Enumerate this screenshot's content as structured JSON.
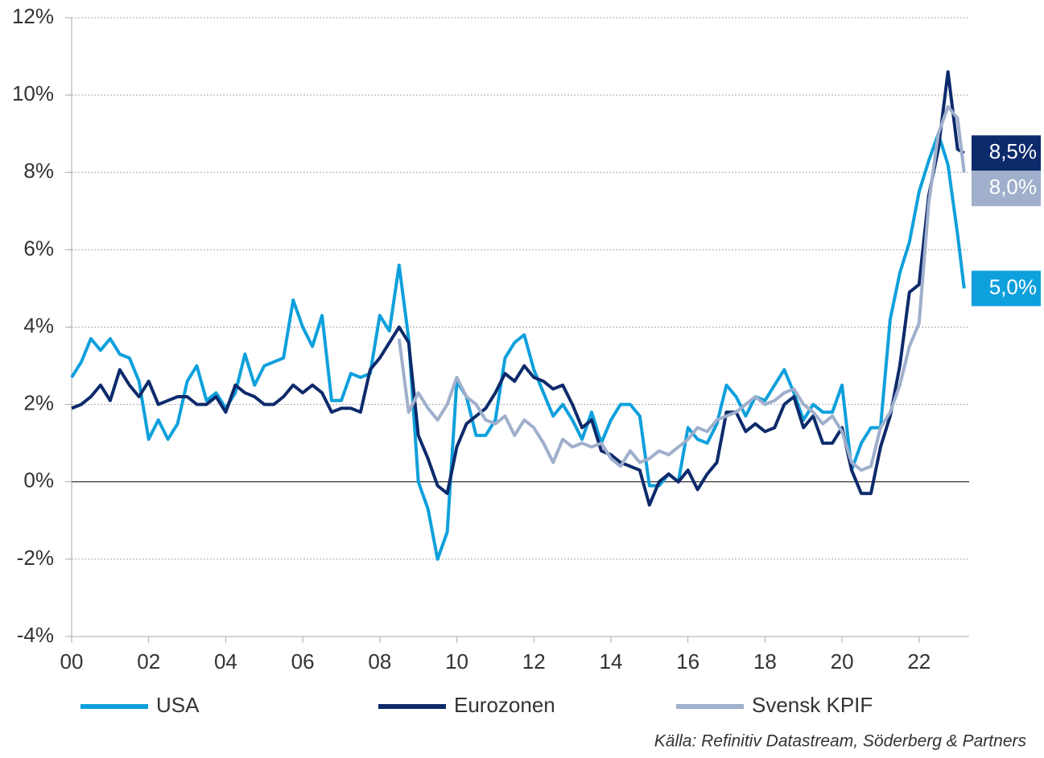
{
  "chart_data": {
    "type": "line",
    "x": [
      2000,
      2000.25,
      2000.5,
      2000.75,
      2001,
      2001.25,
      2001.5,
      2001.75,
      2002,
      2002.25,
      2002.5,
      2002.75,
      2003,
      2003.25,
      2003.5,
      2003.75,
      2004,
      2004.25,
      2004.5,
      2004.75,
      2005,
      2005.25,
      2005.5,
      2005.75,
      2006,
      2006.25,
      2006.5,
      2006.75,
      2007,
      2007.25,
      2007.5,
      2007.75,
      2008,
      2008.25,
      2008.5,
      2008.75,
      2009,
      2009.25,
      2009.5,
      2009.75,
      2010,
      2010.25,
      2010.5,
      2010.75,
      2011,
      2011.25,
      2011.5,
      2011.75,
      2012,
      2012.25,
      2012.5,
      2012.75,
      2013,
      2013.25,
      2013.5,
      2013.75,
      2014,
      2014.25,
      2014.5,
      2014.75,
      2015,
      2015.25,
      2015.5,
      2015.75,
      2016,
      2016.25,
      2016.5,
      2016.75,
      2017,
      2017.25,
      2017.5,
      2017.75,
      2018,
      2018.25,
      2018.5,
      2018.75,
      2019,
      2019.25,
      2019.5,
      2019.75,
      2020,
      2020.25,
      2020.5,
      2020.75,
      2021,
      2021.25,
      2021.5,
      2021.75,
      2022,
      2022.25,
      2022.5,
      2022.75,
      2023,
      2023.17
    ],
    "series": [
      {
        "name": "USA",
        "color": "#0ea0dc",
        "end_label": "5,0%",
        "values": [
          2.7,
          3.1,
          3.7,
          3.4,
          3.7,
          3.3,
          3.2,
          2.6,
          1.1,
          1.6,
          1.1,
          1.5,
          2.6,
          3.0,
          2.1,
          2.3,
          1.9,
          2.3,
          3.3,
          2.5,
          3.0,
          3.1,
          3.2,
          4.7,
          4.0,
          3.5,
          4.3,
          2.1,
          2.1,
          2.8,
          2.7,
          2.8,
          4.3,
          3.9,
          5.6,
          3.7,
          0.0,
          -0.7,
          -2.0,
          -1.3,
          2.6,
          2.2,
          1.2,
          1.2,
          1.6,
          3.2,
          3.6,
          3.8,
          2.9,
          2.3,
          1.7,
          2.0,
          1.6,
          1.1,
          1.8,
          1.0,
          1.6,
          2.0,
          2.0,
          1.7,
          -0.1,
          -0.1,
          0.2,
          0.0,
          1.4,
          1.1,
          1.0,
          1.5,
          2.5,
          2.2,
          1.7,
          2.2,
          2.1,
          2.5,
          2.9,
          2.3,
          1.6,
          2.0,
          1.8,
          1.8,
          2.5,
          0.3,
          1.0,
          1.4,
          1.4,
          4.2,
          5.4,
          6.2,
          7.5,
          8.3,
          9.0,
          8.2,
          6.4,
          5.0
        ]
      },
      {
        "name": "Eurozonen",
        "color": "#0d2a6b",
        "end_label": "8,5%",
        "values": [
          1.9,
          2.0,
          2.2,
          2.5,
          2.1,
          2.9,
          2.5,
          2.2,
          2.6,
          2.0,
          2.1,
          2.2,
          2.2,
          2.0,
          2.0,
          2.2,
          1.8,
          2.5,
          2.3,
          2.2,
          2.0,
          2.0,
          2.2,
          2.5,
          2.3,
          2.5,
          2.3,
          1.8,
          1.9,
          1.9,
          1.8,
          2.9,
          3.2,
          3.6,
          4.0,
          3.6,
          1.2,
          0.6,
          -0.1,
          -0.3,
          0.9,
          1.5,
          1.7,
          1.9,
          2.3,
          2.8,
          2.6,
          3.0,
          2.7,
          2.6,
          2.4,
          2.5,
          2.0,
          1.4,
          1.6,
          0.8,
          0.7,
          0.5,
          0.4,
          0.3,
          -0.6,
          0.0,
          0.2,
          0.0,
          0.3,
          -0.2,
          0.2,
          0.5,
          1.8,
          1.8,
          1.3,
          1.5,
          1.3,
          1.4,
          2.0,
          2.2,
          1.4,
          1.7,
          1.0,
          1.0,
          1.4,
          0.3,
          -0.3,
          -0.3,
          0.9,
          1.7,
          3.0,
          4.9,
          5.1,
          7.4,
          8.6,
          10.6,
          8.6,
          8.5
        ]
      },
      {
        "name": "Svensk KPIF",
        "color": "#9fafcc",
        "end_label": "8,0%",
        "values": [
          null,
          null,
          null,
          null,
          null,
          null,
          null,
          null,
          null,
          null,
          null,
          null,
          null,
          null,
          null,
          null,
          null,
          null,
          null,
          null,
          null,
          null,
          null,
          null,
          null,
          null,
          null,
          null,
          null,
          null,
          null,
          null,
          null,
          null,
          3.7,
          1.8,
          2.3,
          1.9,
          1.6,
          2.0,
          2.7,
          2.2,
          2.0,
          1.6,
          1.5,
          1.7,
          1.2,
          1.6,
          1.4,
          1.0,
          0.5,
          1.1,
          0.9,
          1.0,
          0.9,
          1.0,
          0.6,
          0.4,
          0.8,
          0.5,
          0.6,
          0.8,
          0.7,
          0.9,
          1.1,
          1.4,
          1.3,
          1.6,
          1.7,
          1.8,
          2.0,
          2.2,
          2.0,
          2.1,
          2.3,
          2.4,
          2.0,
          1.8,
          1.5,
          1.7,
          1.3,
          0.5,
          0.3,
          0.4,
          1.4,
          1.8,
          2.5,
          3.5,
          4.1,
          7.2,
          9.0,
          9.7,
          9.4,
          8.0
        ]
      }
    ],
    "xlim": [
      2000,
      2023.3
    ],
    "xticks": [
      {
        "value": 2000,
        "label": "00"
      },
      {
        "value": 2002,
        "label": "02"
      },
      {
        "value": 2004,
        "label": "04"
      },
      {
        "value": 2006,
        "label": "06"
      },
      {
        "value": 2008,
        "label": "08"
      },
      {
        "value": 2010,
        "label": "10"
      },
      {
        "value": 2012,
        "label": "12"
      },
      {
        "value": 2014,
        "label": "14"
      },
      {
        "value": 2016,
        "label": "16"
      },
      {
        "value": 2018,
        "label": "18"
      },
      {
        "value": 2020,
        "label": "20"
      },
      {
        "value": 2022,
        "label": "22"
      }
    ],
    "ylim": [
      -4,
      12
    ],
    "yticks": [
      {
        "value": -4,
        "label": "-4%"
      },
      {
        "value": -2,
        "label": "-2%"
      },
      {
        "value": 0,
        "label": "0%"
      },
      {
        "value": 2,
        "label": "2%"
      },
      {
        "value": 4,
        "label": "4%"
      },
      {
        "value": 6,
        "label": "6%"
      },
      {
        "value": 8,
        "label": "8%"
      },
      {
        "value": 10,
        "label": "10%"
      },
      {
        "value": 12,
        "label": "12%"
      }
    ],
    "grid": true,
    "legend": "bottom",
    "source": "Källa: Refinitiv Datastream, Söderberg & Partners"
  }
}
